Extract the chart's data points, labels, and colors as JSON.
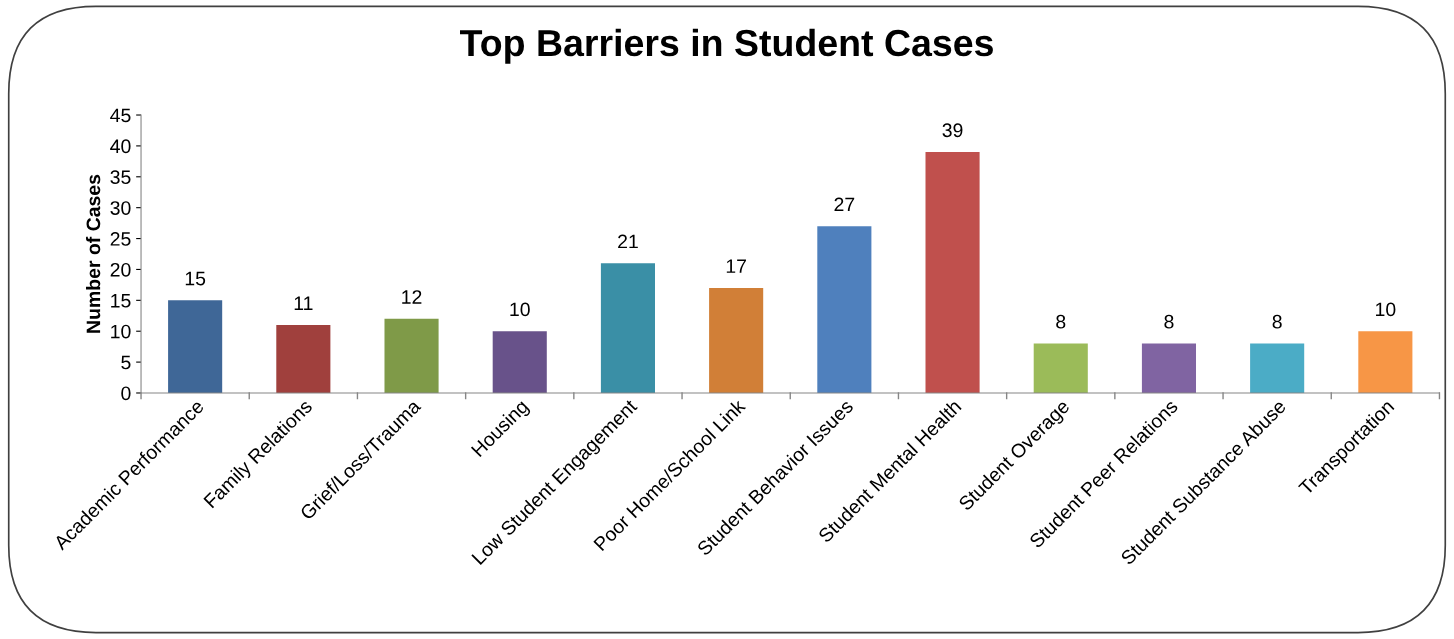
{
  "chart_data": {
    "type": "bar",
    "title": "Top Barriers in Student Cases",
    "ylabel": "Number of Cases",
    "categories": [
      "Academic Performance",
      "Family Relations",
      "Grief/Loss/Trauma",
      "Housing",
      "Low Student Engagement",
      "Poor Home/School Link",
      "Student Behavior Issues",
      "Student Mental Health",
      "Student Overage",
      "Student Peer Relations",
      "Student Substance Abuse",
      "Transportation"
    ],
    "values": [
      15,
      11,
      12,
      10,
      21,
      17,
      27,
      39,
      8,
      8,
      8,
      10
    ],
    "colors": [
      "#3f6797",
      "#a0403d",
      "#7f9a48",
      "#68528a",
      "#3a8fa6",
      "#d17f37",
      "#4f80bd",
      "#c0504d",
      "#9bbb59",
      "#8064a2",
      "#4bacc6",
      "#f79646"
    ],
    "ylim": [
      0,
      45
    ],
    "yticks": [
      0,
      5,
      10,
      15,
      20,
      25,
      30,
      35,
      40,
      45
    ],
    "data_labels": true,
    "grid": false,
    "legend": false
  }
}
